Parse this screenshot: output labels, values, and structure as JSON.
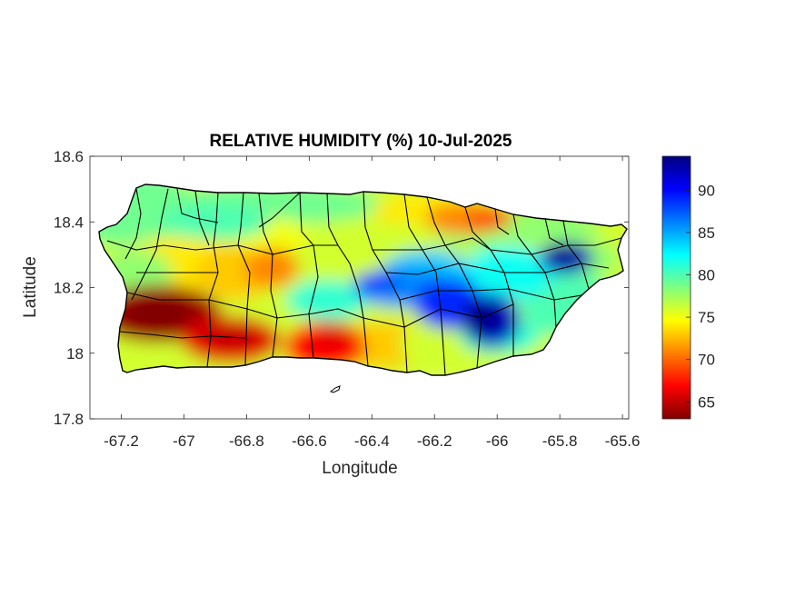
{
  "chart_data": {
    "type": "heatmap",
    "title": "RELATIVE HUMIDITY (%) 10-Jul-2025",
    "xlabel": "Longitude",
    "ylabel": "Latitude",
    "xlim": [
      -67.3,
      -65.58
    ],
    "ylim": [
      17.8,
      18.6
    ],
    "x_ticks": [
      -67.2,
      -67,
      -66.8,
      -66.6,
      -66.4,
      -66.2,
      -66,
      -65.8,
      -65.6
    ],
    "x_tick_labels": [
      "-67.2",
      "-67",
      "-66.8",
      "-66.6",
      "-66.4",
      "-66.2",
      "-66",
      "-65.8",
      "-65.6"
    ],
    "y_ticks": [
      18.6,
      18.4,
      18.2,
      18.0,
      17.8
    ],
    "y_tick_labels": [
      "18.6",
      "18.4",
      "18.2",
      "18",
      "17.8"
    ],
    "colorbar": {
      "colormap": "jet",
      "range": [
        63,
        94
      ],
      "ticks": [
        90,
        85,
        80,
        75,
        70,
        65
      ],
      "tick_labels": [
        "90",
        "85",
        "80",
        "75",
        "70",
        "65"
      ]
    },
    "field_features": [
      {
        "lon": -67.08,
        "lat": 18.12,
        "value": 64
      },
      {
        "lon": -66.85,
        "lat": 18.04,
        "value": 66
      },
      {
        "lon": -66.55,
        "lat": 18.02,
        "value": 67
      },
      {
        "lon": -66.72,
        "lat": 18.26,
        "value": 71
      },
      {
        "lon": -66.1,
        "lat": 18.41,
        "value": 71
      },
      {
        "lon": -66.3,
        "lat": 18.2,
        "value": 86
      },
      {
        "lon": -66.15,
        "lat": 18.15,
        "value": 89
      },
      {
        "lon": -66.02,
        "lat": 18.1,
        "value": 92
      },
      {
        "lon": -65.78,
        "lat": 18.29,
        "value": 92
      },
      {
        "lon": -66.9,
        "lat": 18.4,
        "value": 80
      }
    ]
  }
}
